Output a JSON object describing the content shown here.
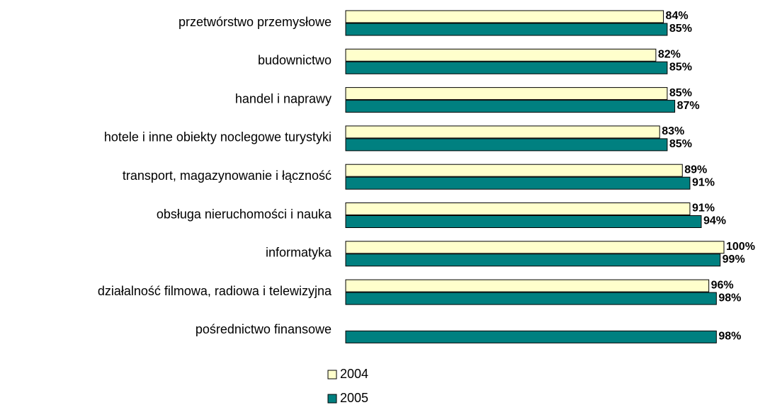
{
  "chart_data": {
    "type": "hbar",
    "categories": [
      "przetwórstwo przemysłowe",
      "budownictwo",
      "handel i naprawy",
      "hotele i inne obiekty noclegowe turystyki",
      "transport, magazynowanie i łączność",
      "obsługa nieruchomości i nauka",
      "informatyka",
      "działalność filmowa, radiowa i telewizyjna",
      "pośrednictwo finansowe"
    ],
    "series": [
      {
        "name": "2004",
        "color": "#ffffcc",
        "values": [
          84,
          82,
          85,
          83,
          89,
          91,
          100,
          96,
          null
        ],
        "value_labels": [
          "84%",
          "82%",
          "85%",
          "83%",
          "89%",
          "91%",
          "100%",
          "96%",
          null
        ]
      },
      {
        "name": "2005",
        "color": "#008080",
        "values": [
          85,
          85,
          87,
          85,
          91,
          94,
          99,
          98,
          98
        ],
        "value_labels": [
          "85%",
          "85%",
          "87%",
          "85%",
          "91%",
          "94%",
          "99%",
          "98%",
          "98%"
        ]
      }
    ],
    "xlim": [
      0,
      100
    ]
  }
}
